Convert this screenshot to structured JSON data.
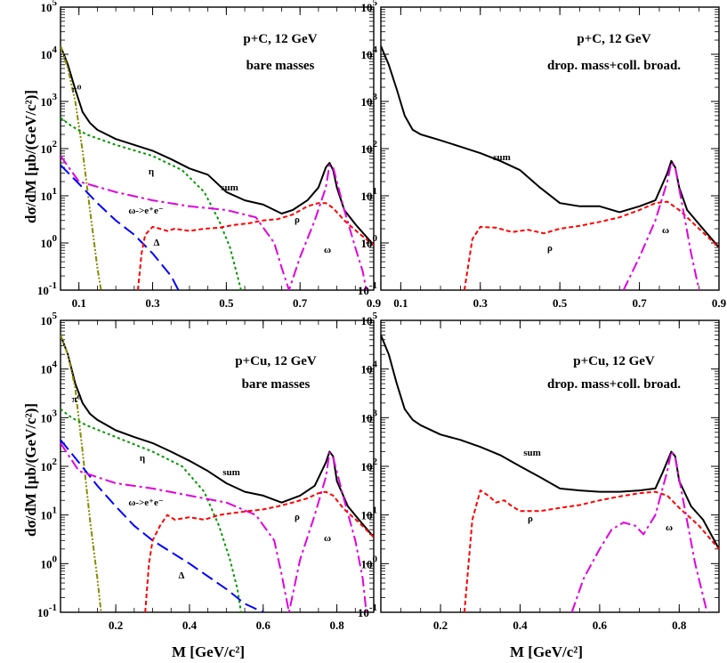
{
  "figure": {
    "ylabel": "dσ/dM  [μb/(GeV/c²)]",
    "xlabel": "M  [GeV/c²]"
  },
  "chart_data": [
    {
      "type": "line",
      "panel": "top-left",
      "title": "p+C,  12 GeV",
      "subtitle": "bare masses",
      "xlim": [
        0.05,
        0.9
      ],
      "ylim": [
        0.1,
        100000
      ],
      "log_y": true,
      "xticks": [
        "0.1",
        "0.3",
        "0.5",
        "0.7",
        "0.9"
      ],
      "ytick_labels": [
        "10⁻¹",
        "10⁰",
        "10¹",
        "10²",
        "10³",
        "10⁴",
        "10⁵"
      ],
      "series": [
        {
          "name": "sum",
          "color": "#000000",
          "dash": "",
          "x": [
            0.05,
            0.07,
            0.09,
            0.11,
            0.13,
            0.15,
            0.2,
            0.25,
            0.3,
            0.35,
            0.4,
            0.45,
            0.5,
            0.55,
            0.6,
            0.65,
            0.68,
            0.72,
            0.75,
            0.77,
            0.78,
            0.79,
            0.8,
            0.82,
            0.85,
            0.9
          ],
          "y": [
            15000,
            6000,
            1800,
            600,
            350,
            250,
            160,
            120,
            90,
            60,
            38,
            28,
            12,
            8,
            6.5,
            4.2,
            5,
            8,
            15,
            40,
            50,
            35,
            15,
            5,
            2.5,
            0.9
          ]
        },
        {
          "name": "π⁰",
          "color": "#8a8a00",
          "dash": "6,2,2,2,2,2",
          "x": [
            0.05,
            0.07,
            0.09,
            0.11,
            0.13,
            0.15,
            0.16
          ],
          "y": [
            15000,
            5000,
            1000,
            90,
            5,
            0.3,
            0.1
          ]
        },
        {
          "name": "η",
          "color": "#009900",
          "dash": "3,3",
          "x": [
            0.05,
            0.08,
            0.12,
            0.2,
            0.3,
            0.38,
            0.44,
            0.48,
            0.51,
            0.53,
            0.54
          ],
          "y": [
            450,
            300,
            200,
            120,
            70,
            35,
            12,
            3,
            0.8,
            0.2,
            0.1
          ]
        },
        {
          "name": "Δ",
          "color": "#0000ff",
          "dash": "14,6",
          "x": [
            0.05,
            0.1,
            0.15,
            0.2,
            0.25,
            0.3,
            0.35,
            0.37
          ],
          "y": [
            45,
            18,
            7,
            3,
            1.5,
            0.6,
            0.2,
            0.1
          ]
        },
        {
          "name": "ω->e⁺e⁻",
          "color": "#e000e0",
          "dash": "12,4,3,4",
          "x": [
            0.05,
            0.1,
            0.2,
            0.3,
            0.4,
            0.5,
            0.58,
            0.63,
            0.65,
            0.67,
            0.7,
            0.74,
            0.77,
            0.78,
            0.79,
            0.82,
            0.85,
            0.87,
            0.88
          ],
          "y": [
            70,
            20,
            12,
            8,
            6,
            5,
            3.5,
            1,
            0.3,
            0.1,
            0.5,
            3,
            15,
            45,
            40,
            5,
            0.8,
            0.25,
            0.1
          ]
        },
        {
          "name": "ρ",
          "color": "#ff0000",
          "dash": "5,3",
          "x": [
            0.26,
            0.27,
            0.28,
            0.3,
            0.32,
            0.34,
            0.36,
            0.4,
            0.44,
            0.48,
            0.52,
            0.56,
            0.6,
            0.64,
            0.68,
            0.72,
            0.75,
            0.77,
            0.79,
            0.82,
            0.86,
            0.9
          ],
          "y": [
            0.1,
            0.6,
            1.5,
            2.2,
            2.0,
            1.8,
            2.0,
            1.8,
            2.0,
            2.1,
            2.4,
            2.6,
            3.0,
            3.2,
            4.0,
            6.0,
            7.0,
            7.0,
            5.5,
            3,
            1.6,
            0.9
          ]
        }
      ],
      "annotations": [
        {
          "text": "π⁰"
        },
        {
          "text": "η"
        },
        {
          "text": "sum"
        },
        {
          "text": "ω->e⁺e⁻"
        },
        {
          "text": "ρ"
        },
        {
          "text": "Δ"
        },
        {
          "text": "ω"
        }
      ]
    },
    {
      "type": "line",
      "panel": "top-right",
      "title": "p+C,  12 GeV",
      "subtitle": "drop. mass+coll. broad.",
      "xlim": [
        0.05,
        0.9
      ],
      "ylim": [
        0.1,
        100000
      ],
      "log_y": true,
      "xticks": [
        "0.1",
        "0.3",
        "0.5",
        "0.7",
        "0.9"
      ],
      "ytick_labels": [
        "10⁻¹",
        "10⁰",
        "10¹",
        "10²",
        "10³",
        "10⁴",
        "10⁵"
      ],
      "series": [
        {
          "name": "sum",
          "color": "#000000",
          "dash": "",
          "x": [
            0.05,
            0.07,
            0.09,
            0.11,
            0.13,
            0.15,
            0.2,
            0.25,
            0.3,
            0.35,
            0.4,
            0.45,
            0.5,
            0.55,
            0.6,
            0.65,
            0.7,
            0.74,
            0.77,
            0.78,
            0.79,
            0.8,
            0.82,
            0.85,
            0.9
          ],
          "y": [
            15000,
            6000,
            1800,
            500,
            250,
            200,
            150,
            110,
            80,
            55,
            35,
            15,
            7,
            6,
            6,
            4.5,
            6,
            8,
            30,
            55,
            40,
            15,
            5,
            2.5,
            0.8
          ]
        },
        {
          "name": "ρ",
          "color": "#ff0000",
          "dash": "5,3",
          "x": [
            0.26,
            0.28,
            0.3,
            0.34,
            0.38,
            0.42,
            0.46,
            0.5,
            0.55,
            0.6,
            0.65,
            0.7,
            0.74,
            0.77,
            0.8,
            0.85,
            0.9
          ],
          "y": [
            0.1,
            1.2,
            2.2,
            2.1,
            1.7,
            1.9,
            1.6,
            2.0,
            2.3,
            2.8,
            3.5,
            5,
            7,
            7.5,
            5,
            2,
            0.8
          ]
        },
        {
          "name": "ω",
          "color": "#e000e0",
          "dash": "12,4,3,4",
          "x": [
            0.66,
            0.7,
            0.74,
            0.77,
            0.78,
            0.79,
            0.81,
            0.83,
            0.85
          ],
          "y": [
            0.1,
            0.5,
            3,
            20,
            50,
            40,
            5,
            0.6,
            0.1
          ]
        }
      ],
      "annotations": [
        {
          "text": "sum"
        },
        {
          "text": "ρ"
        },
        {
          "text": "ω"
        }
      ]
    },
    {
      "type": "line",
      "panel": "bottom-left",
      "title": "p+Cu,  12 GeV",
      "subtitle": "bare masses",
      "xlim": [
        0.05,
        0.9
      ],
      "ylim": [
        0.1,
        100000
      ],
      "log_y": true,
      "xticks": [
        "0.2",
        "0.4",
        "0.6",
        "0.8"
      ],
      "ytick_labels": [
        "10⁻¹",
        "10⁰",
        "10¹",
        "10²",
        "10³",
        "10⁴",
        "10⁵"
      ],
      "series": [
        {
          "name": "sum",
          "color": "#000000",
          "dash": "",
          "x": [
            0.05,
            0.07,
            0.09,
            0.11,
            0.13,
            0.15,
            0.2,
            0.25,
            0.3,
            0.35,
            0.4,
            0.45,
            0.5,
            0.55,
            0.6,
            0.65,
            0.7,
            0.74,
            0.77,
            0.78,
            0.79,
            0.8,
            0.83,
            0.86,
            0.9
          ],
          "y": [
            50000,
            20000,
            5000,
            2000,
            1200,
            900,
            550,
            400,
            300,
            200,
            130,
            80,
            45,
            30,
            25,
            18,
            25,
            40,
            120,
            200,
            160,
            50,
            15,
            8,
            3.5
          ]
        },
        {
          "name": "π⁰",
          "color": "#8a8a00",
          "dash": "6,2,2,2,2,2",
          "x": [
            0.05,
            0.07,
            0.09,
            0.11,
            0.13,
            0.15,
            0.16
          ],
          "y": [
            50000,
            20000,
            4000,
            200,
            8,
            0.5,
            0.1
          ]
        },
        {
          "name": "η",
          "color": "#009900",
          "dash": "3,3",
          "x": [
            0.05,
            0.08,
            0.12,
            0.2,
            0.3,
            0.38,
            0.44,
            0.48,
            0.51,
            0.53,
            0.54
          ],
          "y": [
            1500,
            1000,
            700,
            400,
            200,
            100,
            30,
            6,
            1.2,
            0.3,
            0.1
          ]
        },
        {
          "name": "Δ",
          "color": "#0000ff",
          "dash": "14,6",
          "x": [
            0.05,
            0.1,
            0.15,
            0.2,
            0.25,
            0.3,
            0.4,
            0.5,
            0.55,
            0.6
          ],
          "y": [
            350,
            120,
            40,
            15,
            6,
            3,
            1,
            0.3,
            0.15,
            0.1
          ]
        },
        {
          "name": "ω->e⁺e⁻",
          "color": "#e000e0",
          "dash": "12,4,3,4",
          "x": [
            0.05,
            0.1,
            0.2,
            0.3,
            0.4,
            0.5,
            0.58,
            0.63,
            0.65,
            0.67,
            0.7,
            0.74,
            0.77,
            0.78,
            0.79,
            0.82,
            0.85,
            0.87,
            0.88
          ],
          "y": [
            300,
            80,
            45,
            35,
            25,
            18,
            10,
            3,
            0.6,
            0.1,
            1.2,
            10,
            60,
            190,
            150,
            20,
            3,
            0.5,
            0.1
          ]
        },
        {
          "name": "ρ",
          "color": "#ff0000",
          "dash": "5,3",
          "x": [
            0.28,
            0.29,
            0.3,
            0.32,
            0.34,
            0.36,
            0.4,
            0.44,
            0.48,
            0.52,
            0.56,
            0.6,
            0.64,
            0.68,
            0.72,
            0.75,
            0.77,
            0.79,
            0.82,
            0.86,
            0.9
          ],
          "y": [
            0.1,
            1,
            3,
            6,
            10,
            8,
            9,
            8,
            10,
            11,
            12,
            13,
            15,
            18,
            22,
            28,
            30,
            25,
            13,
            7,
            3.5
          ]
        }
      ],
      "annotations": [
        {
          "text": "π⁰"
        },
        {
          "text": "η"
        },
        {
          "text": "sum"
        },
        {
          "text": "ω->e⁺e⁻"
        },
        {
          "text": "ρ"
        },
        {
          "text": "ω"
        },
        {
          "text": "Δ"
        }
      ]
    },
    {
      "type": "line",
      "panel": "bottom-right",
      "title": "p+Cu,  12 GeV",
      "subtitle": "drop. mass+coll. broad.",
      "xlim": [
        0.05,
        0.9
      ],
      "ylim": [
        0.1,
        100000
      ],
      "log_y": true,
      "xticks": [
        "0.2",
        "0.4",
        "0.6",
        "0.8"
      ],
      "ytick_labels": [
        "10⁻¹",
        "10⁰",
        "10¹",
        "10²",
        "10³",
        "10⁴",
        "10⁵"
      ],
      "series": [
        {
          "name": "sum",
          "color": "#000000",
          "dash": "",
          "x": [
            0.05,
            0.07,
            0.09,
            0.11,
            0.13,
            0.15,
            0.2,
            0.25,
            0.3,
            0.35,
            0.4,
            0.45,
            0.5,
            0.55,
            0.6,
            0.65,
            0.7,
            0.74,
            0.76,
            0.78,
            0.79,
            0.8,
            0.83,
            0.86,
            0.9
          ],
          "y": [
            50000,
            20000,
            5000,
            1500,
            900,
            700,
            450,
            350,
            250,
            170,
            100,
            60,
            35,
            32,
            30,
            30,
            32,
            35,
            80,
            200,
            160,
            50,
            15,
            8,
            2
          ]
        },
        {
          "name": "ρ",
          "color": "#ff0000",
          "dash": "5,3",
          "x": [
            0.26,
            0.28,
            0.3,
            0.32,
            0.34,
            0.36,
            0.38,
            0.4,
            0.45,
            0.5,
            0.55,
            0.6,
            0.65,
            0.7,
            0.74,
            0.77,
            0.8,
            0.85,
            0.9
          ],
          "y": [
            0.1,
            8,
            32,
            25,
            18,
            20,
            15,
            12,
            12,
            14,
            16,
            20,
            24,
            28,
            30,
            25,
            14,
            6,
            2
          ]
        },
        {
          "name": "ω",
          "color": "#e000e0",
          "dash": "12,4,3,4",
          "x": [
            0.53,
            0.56,
            0.6,
            0.63,
            0.66,
            0.69,
            0.71,
            0.74,
            0.77,
            0.78,
            0.79,
            0.81,
            0.84,
            0.87
          ],
          "y": [
            0.1,
            0.5,
            2,
            5,
            7,
            6,
            4,
            10,
            80,
            200,
            150,
            20,
            1,
            0.1
          ]
        }
      ],
      "annotations": [
        {
          "text": "sum"
        },
        {
          "text": "ρ"
        },
        {
          "text": "ω"
        }
      ]
    }
  ]
}
